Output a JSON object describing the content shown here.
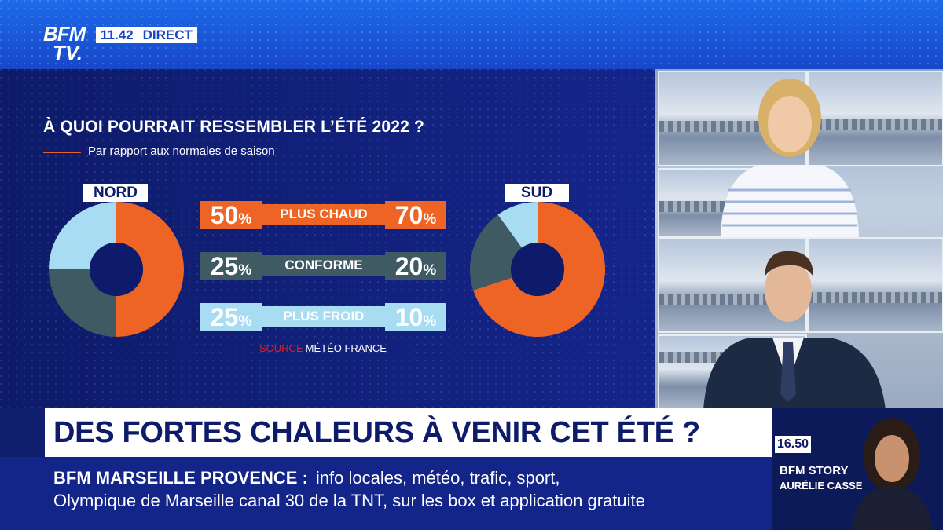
{
  "header": {
    "logo_line1": "BFM",
    "logo_line2": "TV.",
    "time": "11.42",
    "live_label": "DIRECT"
  },
  "graphic": {
    "title": "À QUOI POURRAIT RESSEMBLER L’ÉTÉ 2022 ?",
    "subtitle": "Par rapport aux normales de saison",
    "source_label": "SOURCE",
    "source_value": "MÉTÉO FRANCE",
    "regions": {
      "north": "NORD",
      "south": "SUD"
    },
    "percent_symbol": "%",
    "rows": [
      {
        "label": "PLUS CHAUD",
        "north": 50,
        "south": 70
      },
      {
        "label": "CONFORME",
        "north": 25,
        "south": 20
      },
      {
        "label": "PLUS FROID",
        "north": 25,
        "south": 10
      }
    ],
    "colors": {
      "warm": "#ee6424",
      "normal": "#3f5a63",
      "cold": "#a8dcf2",
      "hole": "#0e1b6a"
    }
  },
  "banner": {
    "headline": "DES FORTES CHALEURS À VENIR CET ÉTÉ ?",
    "ticker_brand": "BFM MARSEILLE PROVENCE :",
    "ticker_line1": "info locales, météo, trafic, sport,",
    "ticker_line2": "Olympique de Marseille canal 30 de la TNT, sur les box et application gratuite"
  },
  "next_show": {
    "time": "16.50",
    "name": "BFM STORY",
    "host": "AURÉLIE CASSE"
  }
}
